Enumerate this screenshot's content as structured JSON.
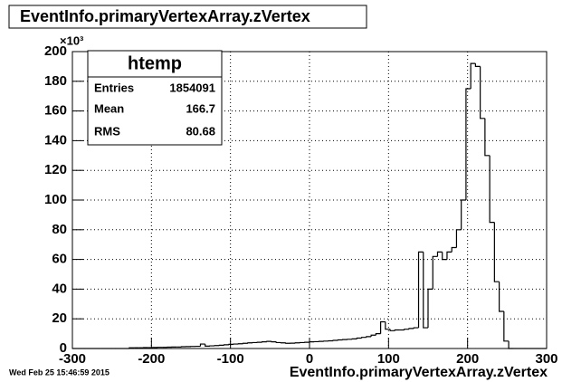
{
  "chart_data": {
    "type": "histogram",
    "title": "EventInfo.primaryVertexArray.zVertex",
    "x_label": "EventInfo.primaryVertexArray.zVertex",
    "y_multiplier": "×10³",
    "timestamp": "Wed Feb 25 15:46:59 2015",
    "stats": {
      "name": "htemp",
      "labels": [
        "Entries",
        "Mean",
        "RMS"
      ],
      "values": [
        1854091,
        166.7,
        80.68
      ]
    },
    "bins": [
      -300,
      -294,
      -288,
      -282,
      -276,
      -270,
      -264,
      -258,
      -252,
      -246,
      -240,
      -234,
      -228,
      -222,
      -216,
      -210,
      -204,
      -198,
      -192,
      -186,
      -180,
      -174,
      -168,
      -162,
      -156,
      -150,
      -144,
      -138,
      -132,
      -126,
      -120,
      -114,
      -108,
      -102,
      -96,
      -90,
      -84,
      -78,
      -72,
      -66,
      -60,
      -54,
      -48,
      -42,
      -36,
      -30,
      -24,
      -18,
      -12,
      -6,
      0,
      6,
      12,
      18,
      24,
      30,
      36,
      42,
      48,
      54,
      60,
      66,
      72,
      78,
      84,
      90,
      96,
      102,
      108,
      114,
      120,
      126,
      132,
      138,
      144,
      150,
      156,
      162,
      168,
      174,
      180,
      186,
      192,
      198,
      204,
      210,
      216,
      222,
      228,
      234,
      240,
      246,
      252,
      258,
      264,
      270,
      276,
      282,
      288,
      294,
      300
    ],
    "values": [
      0,
      0,
      0,
      0,
      0,
      0,
      0,
      0,
      0,
      0,
      0,
      0,
      0.5,
      0.5,
      0.5,
      0.6,
      0.6,
      0.7,
      0.8,
      0.8,
      0.9,
      1,
      1,
      1.2,
      1.3,
      1.4,
      1.5,
      3,
      1.6,
      1.8,
      2,
      2.2,
      2.5,
      2.8,
      3,
      3.2,
      3.5,
      3.8,
      4,
      4.2,
      4.5,
      4.8,
      4.5,
      4,
      3.8,
      3.5,
      3.6,
      3.8,
      4,
      4.2,
      4.5,
      4.6,
      4.8,
      5,
      5.2,
      5.5,
      5.8,
      6,
      6.2,
      6.5,
      7,
      7.5,
      8,
      9,
      10,
      18,
      13,
      12,
      12.5,
      12.5,
      13,
      13.5,
      14,
      65,
      14,
      40,
      62,
      65,
      60,
      65,
      68,
      80,
      100,
      175,
      192,
      190,
      155,
      130,
      85,
      45,
      25,
      5,
      0,
      0,
      0,
      0,
      0,
      0,
      0,
      0
    ],
    "color": "#000000",
    "xlim": [
      -300,
      300
    ],
    "xticks": [
      -300,
      -200,
      -100,
      0,
      100,
      200,
      300
    ],
    "ylim": [
      0,
      200
    ],
    "yticks": [
      0,
      20,
      40,
      60,
      80,
      100,
      120,
      140,
      160,
      180,
      200
    ],
    "grid": true
  }
}
